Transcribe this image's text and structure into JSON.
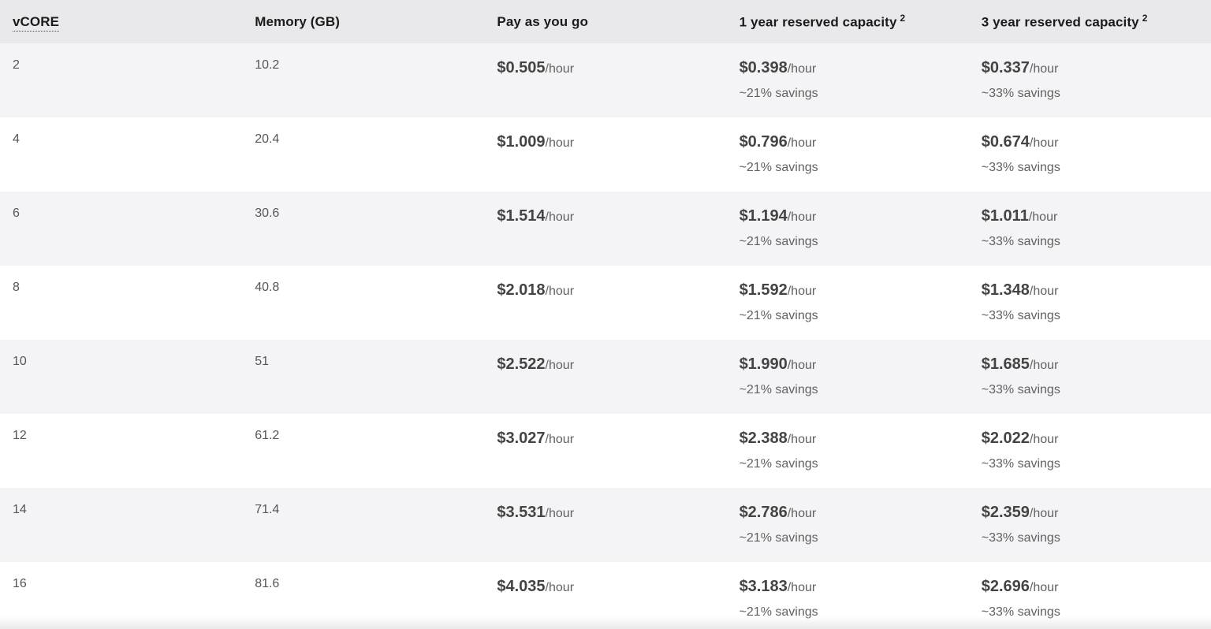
{
  "pricing_table": {
    "columns": [
      {
        "label": "vCORE"
      },
      {
        "label": "Memory (GB)"
      },
      {
        "label": "Pay as you go"
      },
      {
        "label": "1 year reserved capacity",
        "sup": "2"
      },
      {
        "label": "3 year reserved capacity",
        "sup": "2"
      }
    ],
    "unit_suffix": "/hour",
    "rows": [
      {
        "vcore": "2",
        "memory": "10.2",
        "payg_price": "$0.505",
        "r1y_price": "$0.398",
        "r1y_savings": "~21% savings",
        "r3y_price": "$0.337",
        "r3y_savings": "~33% savings"
      },
      {
        "vcore": "4",
        "memory": "20.4",
        "payg_price": "$1.009",
        "r1y_price": "$0.796",
        "r1y_savings": "~21% savings",
        "r3y_price": "$0.674",
        "r3y_savings": "~33% savings"
      },
      {
        "vcore": "6",
        "memory": "30.6",
        "payg_price": "$1.514",
        "r1y_price": "$1.194",
        "r1y_savings": "~21% savings",
        "r3y_price": "$1.011",
        "r3y_savings": "~33% savings"
      },
      {
        "vcore": "8",
        "memory": "40.8",
        "payg_price": "$2.018",
        "r1y_price": "$1.592",
        "r1y_savings": "~21% savings",
        "r3y_price": "$1.348",
        "r3y_savings": "~33% savings"
      },
      {
        "vcore": "10",
        "memory": "51",
        "payg_price": "$2.522",
        "r1y_price": "$1.990",
        "r1y_savings": "~21% savings",
        "r3y_price": "$1.685",
        "r3y_savings": "~33% savings"
      },
      {
        "vcore": "12",
        "memory": "61.2",
        "payg_price": "$3.027",
        "r1y_price": "$2.388",
        "r1y_savings": "~21% savings",
        "r3y_price": "$2.022",
        "r3y_savings": "~33% savings"
      },
      {
        "vcore": "14",
        "memory": "71.4",
        "payg_price": "$3.531",
        "r1y_price": "$2.786",
        "r1y_savings": "~21% savings",
        "r3y_price": "$2.359",
        "r3y_savings": "~33% savings"
      },
      {
        "vcore": "16",
        "memory": "81.6",
        "payg_price": "$4.035",
        "r1y_price": "$3.183",
        "r1y_savings": "~21% savings",
        "r3y_price": "$2.696",
        "r3y_savings": "~33% savings"
      }
    ],
    "colors": {
      "header_bg": "#e9e9eb",
      "shaded_row_bg": "#f4f4f6",
      "white_row_bg": "#ffffff",
      "header_text": "#1b1b1b",
      "price_text": "#444444",
      "secondary_text": "#616161"
    }
  }
}
